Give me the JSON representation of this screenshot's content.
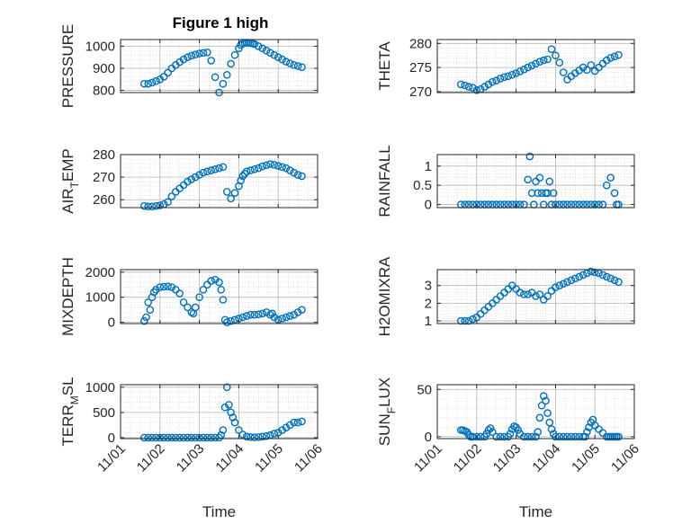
{
  "figure_title": "Figure 1 high",
  "colors": {
    "marker": "#0072BD",
    "axis": "#262626",
    "grid": "#b8b8b8"
  },
  "chart_data": [
    {
      "type": "scatter",
      "id": "pressure",
      "title": "Figure 1 high",
      "ylabel": "PRESSURE",
      "ylabel_sub": null,
      "xlim": [
        0,
        5
      ],
      "ylim": [
        790,
        1030
      ],
      "yticks": [
        800,
        900,
        1000
      ],
      "ytick_labels": [
        "800",
        "900",
        "1000"
      ],
      "xticks": [
        0,
        1,
        2,
        3,
        4,
        5
      ],
      "xtick_labels": [
        "11/01",
        "11/02",
        "11/03",
        "11/04",
        "11/05",
        "11/06"
      ],
      "show_xticklabels": false,
      "xlabel": "",
      "grid": true,
      "minor_grid": true,
      "x": [
        0.6,
        0.7,
        0.8,
        0.9,
        1.0,
        1.1,
        1.2,
        1.3,
        1.4,
        1.5,
        1.6,
        1.7,
        1.8,
        1.9,
        2.0,
        2.1,
        2.2,
        2.3,
        2.4,
        2.5,
        2.6,
        2.7,
        2.8,
        2.9,
        3.0,
        3.05,
        3.1,
        3.15,
        3.2,
        3.25,
        3.3,
        3.35,
        3.4,
        3.5,
        3.6,
        3.7,
        3.8,
        3.9,
        4.0,
        4.1,
        4.2,
        4.3,
        4.4,
        4.5,
        4.6
      ],
      "y": [
        830,
        830,
        835,
        842,
        850,
        862,
        880,
        900,
        915,
        928,
        940,
        950,
        957,
        962,
        967,
        970,
        972,
        935,
        860,
        790,
        830,
        870,
        920,
        960,
        990,
        1005,
        1012,
        1015,
        1016,
        1015,
        1014,
        1012,
        1010,
        1000,
        990,
        980,
        970,
        960,
        950,
        940,
        930,
        922,
        915,
        910,
        905
      ]
    },
    {
      "type": "scatter",
      "id": "theta",
      "title": "",
      "ylabel": "THETA",
      "ylabel_sub": null,
      "xlim": [
        0,
        5
      ],
      "ylim": [
        269.8,
        280.8
      ],
      "yticks": [
        270,
        275,
        280
      ],
      "ytick_labels": [
        "270",
        "275",
        "280"
      ],
      "xticks": [
        0,
        1,
        2,
        3,
        4,
        5
      ],
      "xtick_labels": [
        "11/01",
        "11/02",
        "11/03",
        "11/04",
        "11/05",
        "11/06"
      ],
      "show_xticklabels": false,
      "xlabel": "",
      "grid": true,
      "minor_grid": true,
      "x": [
        0.6,
        0.7,
        0.8,
        0.9,
        1.0,
        1.1,
        1.2,
        1.3,
        1.4,
        1.5,
        1.6,
        1.7,
        1.8,
        1.9,
        2.0,
        2.1,
        2.2,
        2.3,
        2.4,
        2.5,
        2.6,
        2.7,
        2.8,
        2.9,
        3.0,
        3.1,
        3.2,
        3.3,
        3.4,
        3.5,
        3.6,
        3.7,
        3.8,
        3.9,
        4.0,
        4.1,
        4.2,
        4.3,
        4.4,
        4.5,
        4.6
      ],
      "y": [
        271.5,
        271.3,
        271.0,
        270.8,
        270.3,
        270.5,
        271.0,
        271.5,
        272.0,
        272.3,
        272.7,
        273.0,
        273.2,
        273.5,
        273.8,
        274.2,
        274.6,
        275.0,
        275.4,
        275.8,
        276.2,
        276.5,
        276.7,
        278.8,
        277.5,
        276.0,
        274.0,
        272.5,
        273.2,
        273.8,
        274.4,
        275.0,
        274.5,
        275.5,
        274.3,
        275.0,
        275.8,
        276.5,
        277.0,
        277.3,
        277.6
      ]
    },
    {
      "type": "scatter",
      "id": "air_temp",
      "title": "",
      "ylabel": "AIR",
      "ylabel_sub": "T",
      "ylabel_after": "EMP",
      "xlim": [
        0,
        5
      ],
      "ylim": [
        256.5,
        280
      ],
      "yticks": [
        260,
        270,
        280
      ],
      "ytick_labels": [
        "260",
        "270",
        "280"
      ],
      "xticks": [
        0,
        1,
        2,
        3,
        4,
        5
      ],
      "xtick_labels": [
        "11/01",
        "11/02",
        "11/03",
        "11/04",
        "11/05",
        "11/06"
      ],
      "show_xticklabels": false,
      "xlabel": "",
      "grid": true,
      "minor_grid": true,
      "x": [
        0.6,
        0.7,
        0.8,
        0.9,
        1.0,
        1.1,
        1.2,
        1.3,
        1.4,
        1.5,
        1.6,
        1.7,
        1.8,
        1.9,
        2.0,
        2.1,
        2.2,
        2.3,
        2.4,
        2.5,
        2.6,
        2.7,
        2.8,
        2.9,
        3.0,
        3.05,
        3.1,
        3.15,
        3.2,
        3.3,
        3.4,
        3.5,
        3.6,
        3.7,
        3.8,
        3.9,
        4.0,
        4.1,
        4.2,
        4.3,
        4.4,
        4.5,
        4.6
      ],
      "y": [
        257.2,
        257.0,
        257.0,
        257.2,
        257.5,
        258.0,
        259.0,
        261.5,
        263.5,
        265.0,
        266.5,
        268.0,
        269.0,
        270.0,
        271.0,
        272.0,
        272.5,
        273.0,
        273.5,
        274.0,
        274.5,
        263.5,
        260.5,
        263.0,
        266.0,
        268.5,
        270.5,
        271.5,
        272.5,
        273.0,
        273.5,
        274.0,
        274.8,
        275.3,
        275.8,
        275.5,
        275.0,
        274.5,
        274.0,
        273.0,
        272.0,
        271.0,
        270.5
      ]
    },
    {
      "type": "scatter",
      "id": "rainfall",
      "title": "",
      "ylabel": "RAINFALL",
      "ylabel_sub": null,
      "xlim": [
        0,
        5
      ],
      "ylim": [
        -0.08,
        1.3
      ],
      "yticks": [
        0,
        0.5,
        1
      ],
      "ytick_labels": [
        "0",
        "0.5",
        "1"
      ],
      "xticks": [
        0,
        1,
        2,
        3,
        4,
        5
      ],
      "xtick_labels": [
        "11/01",
        "11/02",
        "11/03",
        "11/04",
        "11/05",
        "11/06"
      ],
      "show_xticklabels": false,
      "xlabel": "",
      "grid": true,
      "minor_grid": true,
      "x": [
        0.6,
        0.7,
        0.8,
        0.9,
        1.0,
        1.1,
        1.2,
        1.3,
        1.4,
        1.5,
        1.6,
        1.7,
        1.8,
        1.9,
        2.0,
        2.1,
        2.2,
        2.3,
        2.35,
        2.4,
        2.45,
        2.5,
        2.55,
        2.6,
        2.65,
        2.7,
        2.75,
        2.8,
        2.85,
        2.9,
        2.95,
        3.0,
        3.1,
        3.2,
        3.3,
        3.4,
        3.5,
        3.6,
        3.7,
        3.8,
        3.9,
        4.0,
        4.1,
        4.2,
        4.3,
        4.4,
        4.5,
        4.55,
        4.6
      ],
      "y": [
        0,
        0,
        0,
        0,
        0,
        0,
        0,
        0,
        0,
        0,
        0,
        0,
        0,
        0,
        0,
        0,
        0,
        0.65,
        1.25,
        0.3,
        0,
        0.6,
        0.3,
        0.7,
        0.3,
        0,
        0.3,
        0.3,
        0.6,
        0,
        0.3,
        0,
        0,
        0,
        0,
        0,
        0,
        0,
        0,
        0,
        0,
        0,
        0,
        0,
        0.5,
        0.7,
        0.3,
        0,
        0
      ]
    },
    {
      "type": "scatter",
      "id": "mixdepth",
      "title": "",
      "ylabel": "MIXDEPTH",
      "ylabel_sub": null,
      "xlim": [
        0,
        5
      ],
      "ylim": [
        -50,
        2100
      ],
      "yticks": [
        0,
        1000,
        2000
      ],
      "ytick_labels": [
        "0",
        "1000",
        "2000"
      ],
      "xticks": [
        0,
        1,
        2,
        3,
        4,
        5
      ],
      "xtick_labels": [
        "11/01",
        "11/02",
        "11/03",
        "11/04",
        "11/05",
        "11/06"
      ],
      "show_xticklabels": false,
      "xlabel": "",
      "grid": true,
      "minor_grid": true,
      "x": [
        0.6,
        0.65,
        0.7,
        0.75,
        0.8,
        0.85,
        0.9,
        1.0,
        1.1,
        1.2,
        1.3,
        1.4,
        1.5,
        1.6,
        1.7,
        1.8,
        1.85,
        1.9,
        2.0,
        2.1,
        2.2,
        2.3,
        2.4,
        2.5,
        2.55,
        2.6,
        2.65,
        2.7,
        2.8,
        2.9,
        3.0,
        3.1,
        3.2,
        3.3,
        3.4,
        3.5,
        3.6,
        3.7,
        3.8,
        3.85,
        3.9,
        4.0,
        4.1,
        4.2,
        4.3,
        4.4,
        4.5,
        4.6
      ],
      "y": [
        50,
        200,
        800,
        500,
        1000,
        1200,
        1300,
        1400,
        1420,
        1430,
        1400,
        1300,
        1150,
        800,
        600,
        400,
        350,
        600,
        1000,
        1300,
        1500,
        1650,
        1700,
        1600,
        1300,
        900,
        100,
        0,
        50,
        100,
        150,
        200,
        250,
        300,
        300,
        320,
        350,
        400,
        300,
        350,
        200,
        100,
        150,
        200,
        250,
        300,
        400,
        500
      ]
    },
    {
      "type": "scatter",
      "id": "h2omixra",
      "title": "",
      "ylabel": "H2OMIXRA",
      "ylabel_sub": null,
      "xlim": [
        0,
        5
      ],
      "ylim": [
        0.85,
        3.9
      ],
      "yticks": [
        1,
        2,
        3
      ],
      "ytick_labels": [
        "1",
        "2",
        "3"
      ],
      "xticks": [
        0,
        1,
        2,
        3,
        4,
        5
      ],
      "xtick_labels": [
        "11/01",
        "11/02",
        "11/03",
        "11/04",
        "11/05",
        "11/06"
      ],
      "show_xticklabels": false,
      "xlabel": "",
      "grid": true,
      "minor_grid": true,
      "x": [
        0.6,
        0.7,
        0.8,
        0.9,
        1.0,
        1.1,
        1.2,
        1.3,
        1.4,
        1.5,
        1.6,
        1.7,
        1.8,
        1.9,
        2.0,
        2.1,
        2.2,
        2.3,
        2.4,
        2.5,
        2.6,
        2.7,
        2.8,
        2.9,
        3.0,
        3.1,
        3.2,
        3.3,
        3.4,
        3.5,
        3.6,
        3.7,
        3.8,
        3.9,
        4.0,
        4.1,
        4.2,
        4.3,
        4.4,
        4.5,
        4.6
      ],
      "y": [
        1.0,
        1.0,
        1.0,
        1.1,
        1.2,
        1.4,
        1.6,
        1.8,
        2.0,
        2.2,
        2.4,
        2.6,
        2.8,
        3.0,
        2.8,
        2.6,
        2.5,
        2.5,
        2.6,
        2.4,
        2.5,
        2.2,
        2.4,
        2.7,
        2.9,
        3.0,
        3.1,
        3.2,
        3.3,
        3.4,
        3.5,
        3.6,
        3.7,
        3.8,
        3.75,
        3.7,
        3.6,
        3.5,
        3.4,
        3.3,
        3.2
      ]
    },
    {
      "type": "scatter",
      "id": "terr_msl",
      "title": "",
      "ylabel": "TERR",
      "ylabel_sub": "M",
      "ylabel_after": "SL",
      "xlim": [
        0,
        5
      ],
      "ylim": [
        -20,
        1050
      ],
      "yticks": [
        0,
        500,
        1000
      ],
      "ytick_labels": [
        "0",
        "500",
        "1000"
      ],
      "xticks": [
        0,
        1,
        2,
        3,
        4,
        5
      ],
      "xtick_labels": [
        "11/01",
        "11/02",
        "11/03",
        "11/04",
        "11/05",
        "11/06"
      ],
      "show_xticklabels": true,
      "xlabel": "Time",
      "grid": true,
      "minor_grid": true,
      "x": [
        0.6,
        0.7,
        0.8,
        0.9,
        1.0,
        1.1,
        1.2,
        1.3,
        1.4,
        1.5,
        1.6,
        1.7,
        1.8,
        1.9,
        2.0,
        2.1,
        2.2,
        2.3,
        2.4,
        2.5,
        2.55,
        2.6,
        2.65,
        2.7,
        2.75,
        2.8,
        2.85,
        2.9,
        3.0,
        3.1,
        3.2,
        3.3,
        3.4,
        3.5,
        3.6,
        3.7,
        3.8,
        3.9,
        4.0,
        4.1,
        4.2,
        4.3,
        4.4,
        4.5,
        4.6
      ],
      "y": [
        0,
        0,
        0,
        0,
        0,
        0,
        0,
        0,
        0,
        0,
        0,
        0,
        0,
        0,
        0,
        0,
        0,
        0,
        0,
        0,
        50,
        150,
        600,
        1000,
        650,
        500,
        400,
        300,
        150,
        60,
        20,
        10,
        5,
        10,
        20,
        30,
        50,
        80,
        100,
        150,
        200,
        250,
        300,
        300,
        320
      ]
    },
    {
      "type": "scatter",
      "id": "sun_flux",
      "title": "",
      "ylabel": "SUN",
      "ylabel_sub": "F",
      "ylabel_after": "LUX",
      "xlim": [
        0,
        5
      ],
      "ylim": [
        -2,
        55
      ],
      "yticks": [
        0,
        50
      ],
      "ytick_labels": [
        "0",
        "50"
      ],
      "xticks": [
        0,
        1,
        2,
        3,
        4,
        5
      ],
      "xtick_labels": [
        "11/01",
        "11/02",
        "11/03",
        "11/04",
        "11/05",
        "11/06"
      ],
      "show_xticklabels": true,
      "xlabel": "Time",
      "grid": true,
      "minor_grid": true,
      "x": [
        0.6,
        0.65,
        0.7,
        0.75,
        0.8,
        0.85,
        0.9,
        1.0,
        1.1,
        1.2,
        1.25,
        1.3,
        1.35,
        1.4,
        1.5,
        1.6,
        1.7,
        1.8,
        1.85,
        1.9,
        1.95,
        2.0,
        2.05,
        2.1,
        2.2,
        2.3,
        2.4,
        2.5,
        2.55,
        2.6,
        2.65,
        2.7,
        2.75,
        2.8,
        2.85,
        2.9,
        2.95,
        3.0,
        3.1,
        3.2,
        3.3,
        3.4,
        3.5,
        3.6,
        3.7,
        3.75,
        3.8,
        3.85,
        3.9,
        3.95,
        4.0,
        4.1,
        4.2,
        4.3,
        4.35,
        4.4,
        4.45,
        4.5,
        4.55,
        4.6
      ],
      "y": [
        7,
        7,
        6,
        5,
        2,
        0,
        0,
        0,
        0,
        0,
        3,
        7,
        9,
        5,
        0,
        0,
        0,
        0,
        3,
        8,
        11,
        10,
        7,
        3,
        0,
        0,
        0,
        0,
        5,
        20,
        33,
        43,
        38,
        25,
        15,
        8,
        3,
        0,
        0,
        0,
        0,
        0,
        0,
        0,
        0,
        0,
        5,
        10,
        15,
        18,
        12,
        8,
        4,
        0,
        0,
        0,
        0,
        0,
        0,
        0
      ]
    }
  ]
}
